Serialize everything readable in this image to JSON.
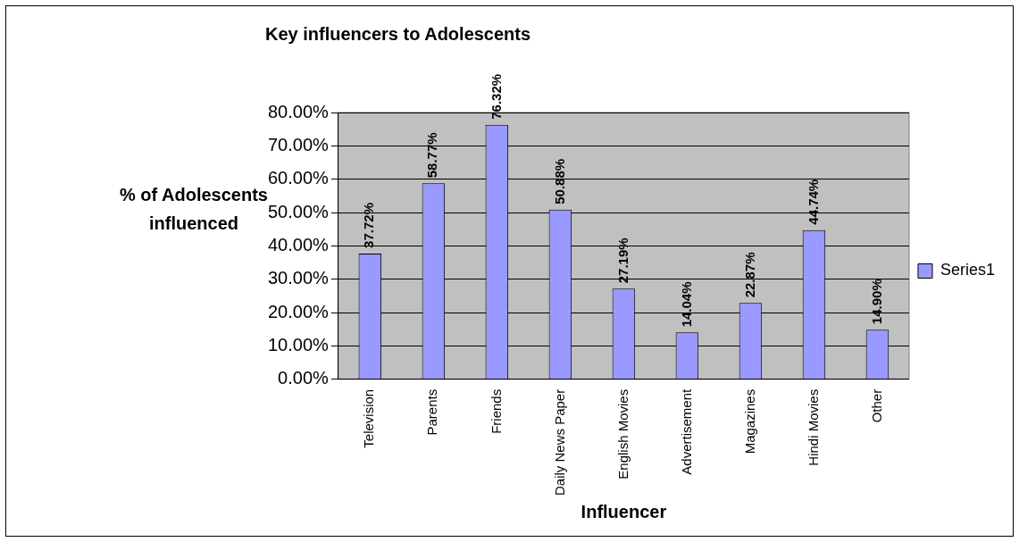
{
  "chart_data": {
    "type": "bar",
    "title": "Key influencers to Adolescents",
    "xlabel": "Influencer",
    "ylabel": "% of Adolescents influenced",
    "categories": [
      "Television",
      "Parents",
      "Friends",
      "Daily News Paper",
      "English Movies",
      "Advertisement",
      "Magazines",
      "Hindi Movies",
      "Other"
    ],
    "series": [
      {
        "name": "Series1",
        "color": "#9999ff",
        "values": [
          37.72,
          58.77,
          76.32,
          50.88,
          27.19,
          14.04,
          22.87,
          44.74,
          14.9
        ],
        "value_labels": [
          "37.72%",
          "58.77%",
          "76.32%",
          "50.88%",
          "27.19%",
          "14.04%",
          "22.87%",
          "44.74%",
          "14.90%"
        ]
      }
    ],
    "ylim": [
      0,
      80
    ],
    "yticks": [
      {
        "value": 0,
        "label": "0.00%"
      },
      {
        "value": 10,
        "label": "10.00%"
      },
      {
        "value": 20,
        "label": "20.00%"
      },
      {
        "value": 30,
        "label": "30.00%"
      },
      {
        "value": 40,
        "label": "40.00%"
      },
      {
        "value": 50,
        "label": "50.00%"
      },
      {
        "value": 60,
        "label": "60.00%"
      },
      {
        "value": 70,
        "label": "70.00%"
      },
      {
        "value": 80,
        "label": "80.00%"
      }
    ],
    "grid": "y",
    "legend": "right"
  }
}
